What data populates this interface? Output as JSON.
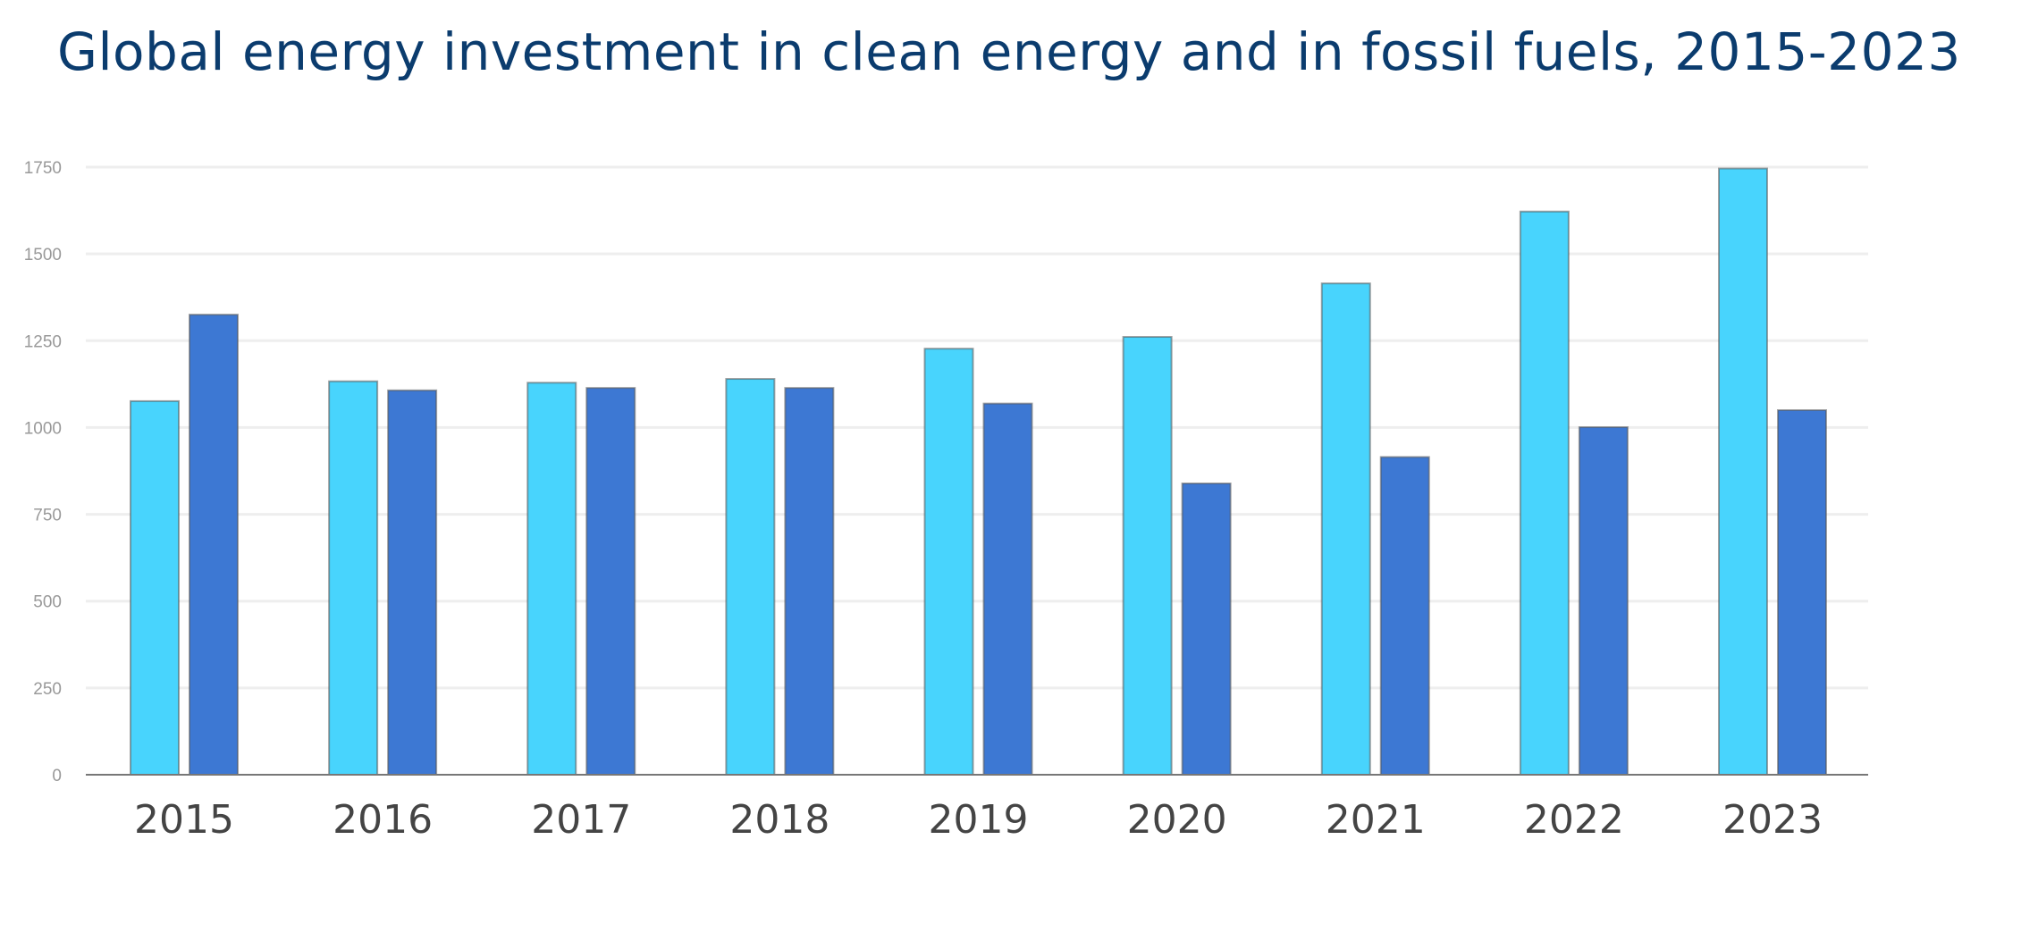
{
  "chart_data": {
    "type": "bar",
    "title": "Global energy investment in clean energy and in fossil fuels, 2015-2023",
    "xlabel": "",
    "ylabel": "",
    "ylim": [
      0,
      1750
    ],
    "yticks": [
      "0",
      "250",
      "500",
      "750",
      "1000",
      "1250",
      "1500",
      "1750"
    ],
    "grid": true,
    "legend": "none",
    "categories": [
      "2015",
      "2016",
      "2017",
      "2018",
      "2019",
      "2020",
      "2021",
      "2022",
      "2023"
    ],
    "series": [
      {
        "key": "clean",
        "color": "#48d4fd",
        "values": [
          1076,
          1133,
          1129,
          1140,
          1227,
          1261,
          1415,
          1622,
          1746
        ]
      },
      {
        "key": "fossil",
        "color": "#3d78d3",
        "values": [
          1325,
          1107,
          1114,
          1114,
          1069,
          839,
          915,
          1001,
          1050
        ]
      }
    ]
  }
}
